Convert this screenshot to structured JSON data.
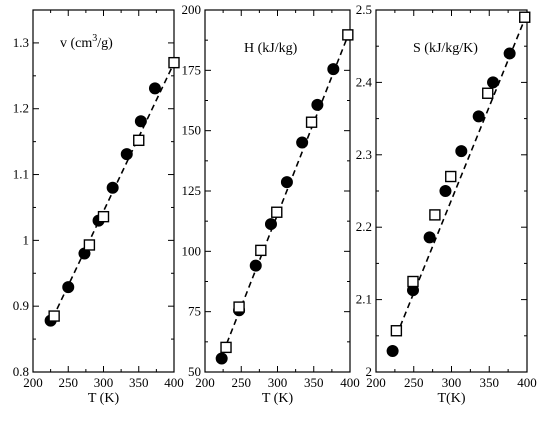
{
  "chart_data": [
    {
      "type": "scatter",
      "title": "v (cm3/g)",
      "title_parts": {
        "base": "v (cm",
        "sup": "3",
        "tail": "/g)"
      },
      "xlabel": "T (K)",
      "xlim": [
        200,
        400
      ],
      "ylim": [
        0.8,
        1.35
      ],
      "xticks": [
        200,
        250,
        300,
        350,
        400
      ],
      "yticks": [
        0.8,
        0.9,
        1.0,
        1.1,
        1.2,
        1.3
      ],
      "ytick_labels": [
        "0.8",
        "0.9",
        "1",
        "1.1",
        "1.2",
        "1.3"
      ],
      "series": [
        {
          "marker": "filled-circle",
          "x": [
            225,
            250,
            273,
            293,
            313,
            333,
            353,
            373
          ],
          "y": [
            0.878,
            0.929,
            0.98,
            1.03,
            1.08,
            1.131,
            1.181,
            1.231
          ]
        },
        {
          "marker": "open-square",
          "x": [
            230,
            280,
            300,
            350,
            400
          ],
          "y": [
            0.885,
            0.993,
            1.036,
            1.152,
            1.27
          ]
        },
        {
          "marker": "dashed-line",
          "x": [
            228,
            398
          ],
          "y": [
            0.882,
            1.265
          ]
        }
      ]
    },
    {
      "type": "scatter",
      "title": "H (kJ/kg)",
      "xlabel": "T (K)",
      "xlim": [
        200,
        400
      ],
      "ylim": [
        50,
        200
      ],
      "xticks": [
        200,
        250,
        300,
        350,
        400
      ],
      "yticks": [
        50,
        75,
        100,
        125,
        150,
        175,
        200
      ],
      "ytick_labels": [
        "50",
        "75",
        "100",
        "125",
        "150",
        "175",
        "200"
      ],
      "series": [
        {
          "marker": "filled-circle",
          "x": [
            223,
            247,
            270,
            291,
            313,
            334,
            355,
            377
          ],
          "y": [
            55.6,
            75.6,
            94.1,
            111.3,
            128.7,
            145.1,
            160.7,
            175.5
          ]
        },
        {
          "marker": "open-square",
          "x": [
            229,
            247,
            277,
            299,
            347,
            397
          ],
          "y": [
            60.2,
            76.9,
            100.4,
            116.2,
            153.5,
            189.7
          ]
        },
        {
          "marker": "dashed-line",
          "x": [
            225,
            398
          ],
          "y": [
            58,
            190
          ]
        }
      ]
    },
    {
      "type": "scatter",
      "title": "S (kJ/kg/K)",
      "xlabel": "T(K)",
      "xlim": [
        200,
        400
      ],
      "ylim": [
        2.0,
        2.5
      ],
      "xticks": [
        200,
        250,
        300,
        350,
        400
      ],
      "yticks": [
        2.0,
        2.1,
        2.2,
        2.3,
        2.4,
        2.5
      ],
      "ytick_labels": [
        "2",
        "2.1",
        "2.2",
        "2.3",
        "2.4",
        "2.5"
      ],
      "series": [
        {
          "marker": "filled-circle",
          "x": [
            222,
            249,
            271,
            292,
            313,
            336,
            355,
            377
          ],
          "y": [
            2.029,
            2.113,
            2.186,
            2.25,
            2.305,
            2.353,
            2.4,
            2.44
          ]
        },
        {
          "marker": "open-square",
          "x": [
            227,
            249,
            278,
            299,
            348,
            397
          ],
          "y": [
            2.057,
            2.125,
            2.217,
            2.27,
            2.385,
            2.49
          ]
        },
        {
          "marker": "dashed-line",
          "x": [
            227,
            398
          ],
          "y": [
            2.05,
            2.49
          ]
        }
      ]
    }
  ]
}
